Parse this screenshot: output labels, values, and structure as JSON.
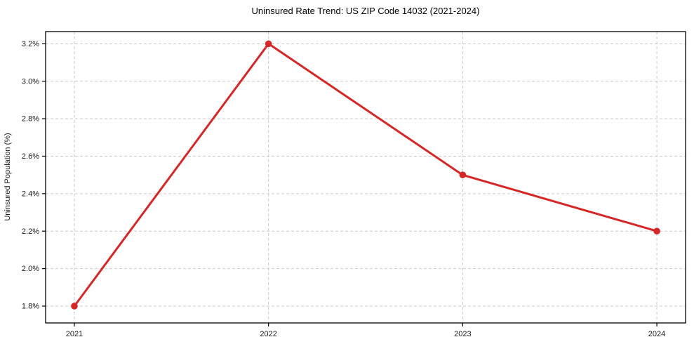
{
  "chart_data": {
    "type": "line",
    "title": "Uninsured Rate Trend: US ZIP Code 14032 (2021-2024)",
    "xlabel": "",
    "ylabel": "Uninsured Population (%)",
    "categories": [
      "2021",
      "2022",
      "2023",
      "2024"
    ],
    "x_values": [
      2021,
      2022,
      2023,
      2024
    ],
    "series": [
      {
        "name": "Uninsured Rate",
        "values": [
          1.8,
          3.2,
          2.5,
          2.2
        ],
        "color": "#d62728",
        "marker": "circle"
      }
    ],
    "ytick_values": [
      1.8,
      2.0,
      2.2,
      2.4,
      2.6,
      2.8,
      3.0,
      3.2
    ],
    "ytick_labels": [
      "1.8%",
      "2.0%",
      "2.2%",
      "2.4%",
      "2.6%",
      "2.8%",
      "3.0%",
      "3.2%"
    ],
    "xlim": [
      2020.852,
      2024.148
    ],
    "ylim": [
      1.71,
      3.265
    ],
    "grid": true,
    "grid_style": "dashed",
    "legend": "none",
    "colors": {
      "line": "#d62728",
      "marker": "#d62728",
      "grid": "#c9c9c9",
      "spine": "#000000",
      "text": "#1a1a1a",
      "background": "#ffffff"
    }
  }
}
